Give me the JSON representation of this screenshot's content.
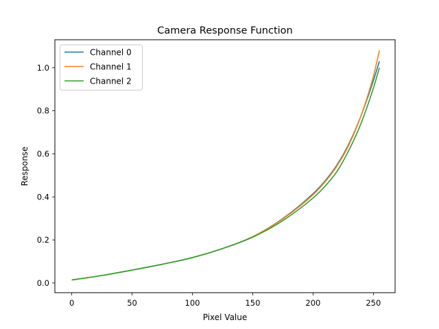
{
  "chart_data": {
    "type": "line",
    "title": "Camera Response Function",
    "xlabel": "Pixel Value",
    "ylabel": "Response",
    "xlim": [
      -14,
      268
    ],
    "ylim": [
      -0.045,
      1.13
    ],
    "xticks": [
      0,
      50,
      100,
      150,
      200,
      250
    ],
    "yticks": [
      0.0,
      0.2,
      0.4,
      0.6,
      0.8,
      1.0
    ],
    "xtick_labels": [
      "0",
      "50",
      "100",
      "150",
      "200",
      "250"
    ],
    "ytick_labels": [
      "0.0",
      "0.2",
      "0.4",
      "0.6",
      "0.8",
      "1.0"
    ],
    "grid": false,
    "legend_position": "top-left",
    "x": [
      0,
      25,
      50,
      75,
      100,
      125,
      150,
      175,
      200,
      210,
      220,
      230,
      240,
      250,
      255
    ],
    "series": [
      {
        "name": "Channel 0",
        "color": "#1f77b4",
        "values": [
          0.014,
          0.035,
          0.06,
          0.087,
          0.118,
          0.16,
          0.215,
          0.3,
          0.415,
          0.475,
          0.55,
          0.65,
          0.78,
          0.94,
          1.03
        ]
      },
      {
        "name": "Channel 1",
        "color": "#ff7f0e",
        "values": [
          0.014,
          0.035,
          0.06,
          0.087,
          0.118,
          0.16,
          0.215,
          0.298,
          0.41,
          0.47,
          0.545,
          0.645,
          0.78,
          0.96,
          1.08
        ]
      },
      {
        "name": "Channel 2",
        "color": "#2ca02c",
        "values": [
          0.014,
          0.035,
          0.06,
          0.087,
          0.118,
          0.16,
          0.213,
          0.29,
          0.395,
          0.45,
          0.52,
          0.62,
          0.745,
          0.905,
          1.0
        ]
      }
    ]
  }
}
